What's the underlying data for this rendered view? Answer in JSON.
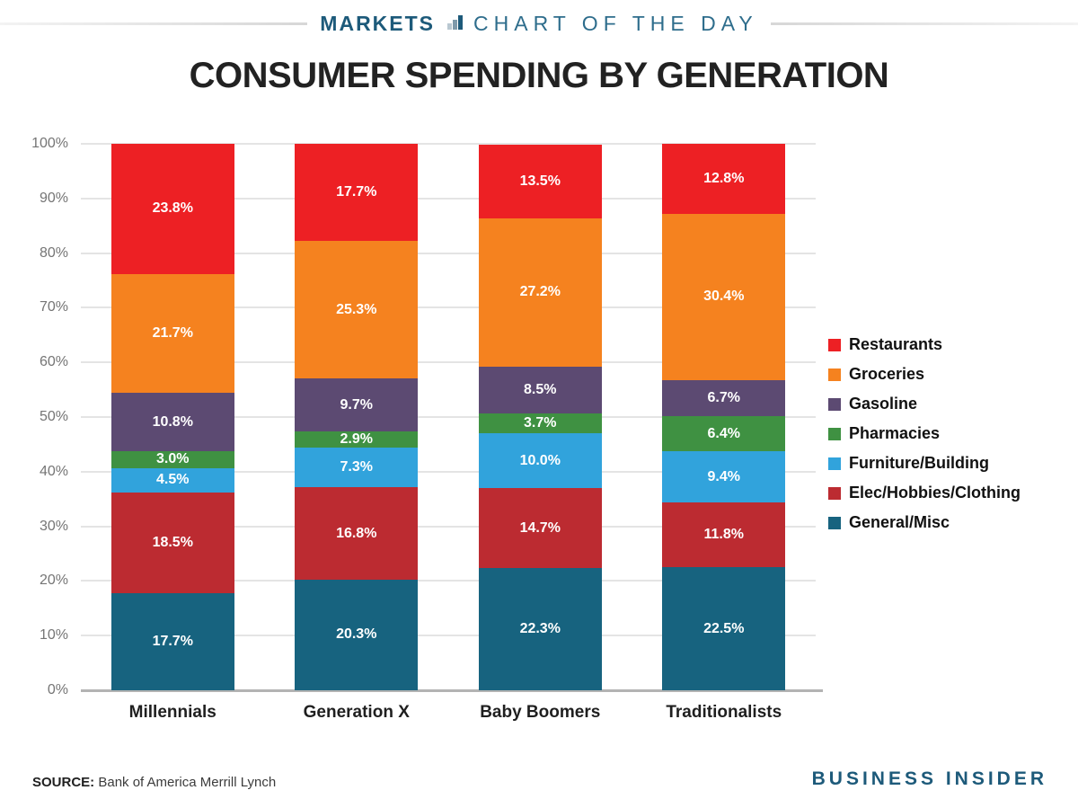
{
  "header": {
    "kicker_left": "MARKETS",
    "kicker_right": "CHART OF THE DAY",
    "accent_color": "#1d5a7a"
  },
  "title": "CONSUMER SPENDING BY GENERATION",
  "chart_data": {
    "type": "bar",
    "subtype": "stacked-100-percent",
    "title": "CONSUMER SPENDING BY GENERATION",
    "categories": [
      "Millennials",
      "Generation X",
      "Baby Boomers",
      "Traditionalists"
    ],
    "series": [
      {
        "name": "Restaurants",
        "color": "#ed2024",
        "values": [
          23.8,
          17.7,
          13.5,
          12.8
        ]
      },
      {
        "name": "Groceries",
        "color": "#f5821f",
        "values": [
          21.7,
          25.3,
          27.2,
          30.4
        ]
      },
      {
        "name": "Gasoline",
        "color": "#5c4a72",
        "values": [
          10.8,
          9.7,
          8.5,
          6.7
        ]
      },
      {
        "name": "Pharmacies",
        "color": "#3f9142",
        "values": [
          3.0,
          2.9,
          3.7,
          6.4
        ]
      },
      {
        "name": "Furniture/Building",
        "color": "#31a3dc",
        "values": [
          4.5,
          7.3,
          10.0,
          9.4
        ]
      },
      {
        "name": "Elec/Hobbies/Clothing",
        "color": "#bc2b31",
        "values": [
          18.5,
          16.8,
          14.7,
          11.8
        ]
      },
      {
        "name": "General/Misc",
        "color": "#17637f",
        "values": [
          17.7,
          20.3,
          22.3,
          22.5
        ]
      }
    ],
    "value_suffix": "%",
    "value_decimals": 1,
    "y_ticks": [
      "100%",
      "90%",
      "80%",
      "70%",
      "60%",
      "50%",
      "40%",
      "30%",
      "20%",
      "10%",
      "0%"
    ],
    "ylim": [
      0,
      100
    ],
    "grid": true,
    "legend_position": "right",
    "xlabel": "",
    "ylabel": ""
  },
  "footer": {
    "source_label": "SOURCE:",
    "source_text": "Bank of America Merrill Lynch",
    "brand": "BUSINESS INSIDER"
  }
}
